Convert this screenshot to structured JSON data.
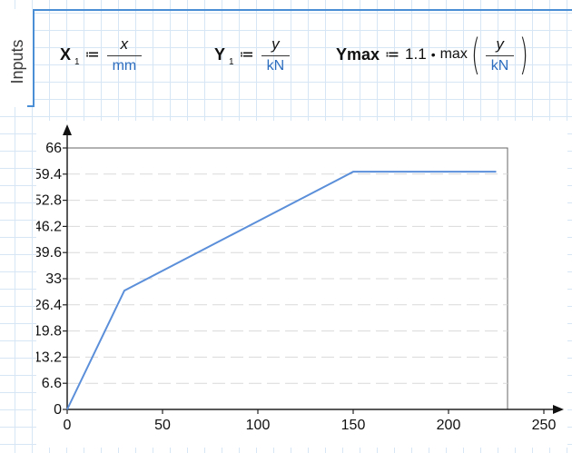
{
  "region": {
    "label": "Inputs"
  },
  "equations": {
    "x": {
      "var": "X",
      "sub": "1",
      "assign": "≔",
      "num": "x",
      "den": "mm"
    },
    "y": {
      "var": "Y",
      "sub": "1",
      "assign": "≔",
      "num": "y",
      "den": "kN"
    },
    "ymax": {
      "var": "Ymax",
      "assign": "≔",
      "coef": "1.1",
      "dot": "•",
      "fn": "max",
      "open": "(",
      "close": ")",
      "num": "y",
      "den": "kN"
    }
  },
  "chart_data": {
    "type": "line",
    "x": [
      0,
      30,
      150,
      225
    ],
    "series": [
      {
        "values": [
          0,
          30,
          60,
          60
        ],
        "color": "#5b8fd9"
      }
    ],
    "xlim": [
      0,
      250
    ],
    "ylim": [
      0,
      66
    ],
    "xticks": [
      0,
      50,
      100,
      150,
      200,
      250
    ],
    "yticks": [
      "0",
      "6.6",
      "13.2",
      "19.8",
      "26.4",
      "33",
      "39.6",
      "46.2",
      "52.8",
      "59.4",
      "66"
    ],
    "grid": {
      "horizontal": "dashed",
      "vertical": false
    },
    "title": "",
    "xlabel": "",
    "ylabel": ""
  }
}
